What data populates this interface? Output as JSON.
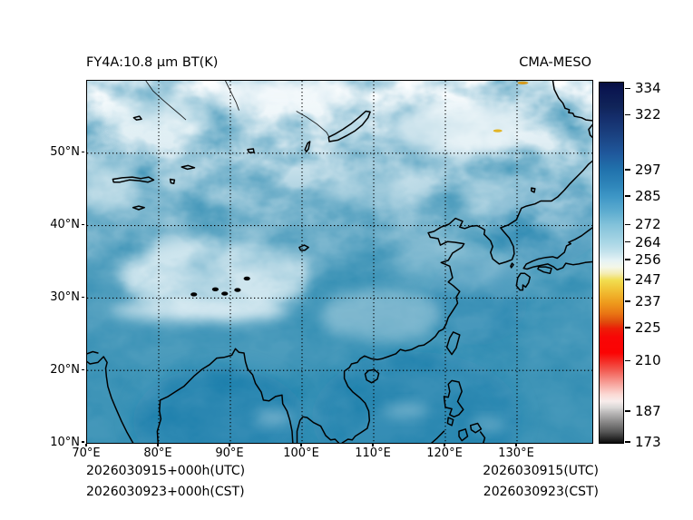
{
  "figure": {
    "title_left": "FY4A:10.8 μm BT(K)",
    "title_right": "CMA-MESO",
    "footer_left_line1": "2026030915+000h(UTC)",
    "footer_left_line2": "2026030923+000h(CST)",
    "footer_right_line1": "2026030915(UTC)",
    "footer_right_line2": "2026030923(CST)"
  },
  "chart_data": {
    "type": "heatmap",
    "title": "FY4A:10.8 μm BT(K)",
    "annotation_right": "CMA-MESO",
    "description": "Satellite infrared brightness temperature (10.8 micron, Kelvin) plotted over an East Asia map with coastlines",
    "x_axis": {
      "range_deg_east": [
        70,
        140.5
      ],
      "ticks_deg": [
        70,
        80,
        90,
        100,
        110,
        120,
        130
      ],
      "tick_labels": [
        "70°E",
        "80°E",
        "90°E",
        "100°E",
        "110°E",
        "120°E",
        "130°E"
      ]
    },
    "y_axis": {
      "range_deg_north": [
        10,
        60
      ],
      "ticks_deg": [
        10,
        20,
        30,
        40,
        50
      ],
      "tick_labels": [
        "10°N",
        "20°N",
        "30°N",
        "40°N",
        "50°N"
      ]
    },
    "grid": {
      "style": "dotted",
      "color": "#000000"
    },
    "colorbar": {
      "unit": "K",
      "vmin": 173,
      "vmax": 337,
      "ticks": [
        334,
        322,
        297,
        285,
        272,
        264,
        256,
        247,
        237,
        225,
        210,
        187,
        173
      ],
      "gradient_stops": [
        {
          "v": 337,
          "c": "#070e41"
        },
        {
          "v": 334,
          "c": "#0a1550"
        },
        {
          "v": 326,
          "c": "#102459"
        },
        {
          "v": 322,
          "c": "#142c69"
        },
        {
          "v": 314,
          "c": "#1a3f7e"
        },
        {
          "v": 305,
          "c": "#1f579b"
        },
        {
          "v": 297,
          "c": "#2173ad"
        },
        {
          "v": 290,
          "c": "#2f86ba"
        },
        {
          "v": 285,
          "c": "#3e97c6"
        },
        {
          "v": 278,
          "c": "#5fadd0"
        },
        {
          "v": 272,
          "c": "#84c3da"
        },
        {
          "v": 267,
          "c": "#9ccfe1"
        },
        {
          "v": 264,
          "c": "#abd7e6"
        },
        {
          "v": 260,
          "c": "#c3e2ec"
        },
        {
          "v": 256,
          "c": "#e5f2f5"
        },
        {
          "v": 253,
          "c": "#f4f7e8"
        },
        {
          "v": 250,
          "c": "#f4ecb0"
        },
        {
          "v": 247,
          "c": "#f1dd50"
        },
        {
          "v": 243,
          "c": "#f1c437"
        },
        {
          "v": 237,
          "c": "#ee9c1d"
        },
        {
          "v": 232,
          "c": "#e97714"
        },
        {
          "v": 228,
          "c": "#e04b0d"
        },
        {
          "v": 225,
          "c": "#ec1d07"
        },
        {
          "v": 221,
          "c": "#f80606"
        },
        {
          "v": 214,
          "c": "#fb0404"
        },
        {
          "v": 210,
          "c": "#f42f28"
        },
        {
          "v": 206,
          "c": "#f25b52"
        },
        {
          "v": 200,
          "c": "#f7a29b"
        },
        {
          "v": 195,
          "c": "#fbd9d4"
        },
        {
          "v": 192,
          "c": "#f8eceb"
        },
        {
          "v": 189,
          "c": "#d9d7d6"
        },
        {
          "v": 187,
          "c": "#bebcbc"
        },
        {
          "v": 183,
          "c": "#8f8e8e"
        },
        {
          "v": 178,
          "c": "#565656"
        },
        {
          "v": 173,
          "c": "#0b0b0b"
        }
      ]
    },
    "footer": {
      "left": [
        "2026030915+000h(UTC)",
        "2026030923+000h(CST)"
      ],
      "right": [
        "2026030915(UTC)",
        "2026030923(CST)"
      ]
    },
    "map_features": [
      "coastlines-east-asia",
      "lakes",
      "rivers",
      "islands",
      "dotted-graticule",
      "cloud-field"
    ],
    "palette": {
      "sea_teal": "#1076a8",
      "base_teal": "#2a89b0",
      "cloud_white": "#eef7fa",
      "coastline": "#000000",
      "cold_cloud_speck": "#e2b426"
    }
  }
}
